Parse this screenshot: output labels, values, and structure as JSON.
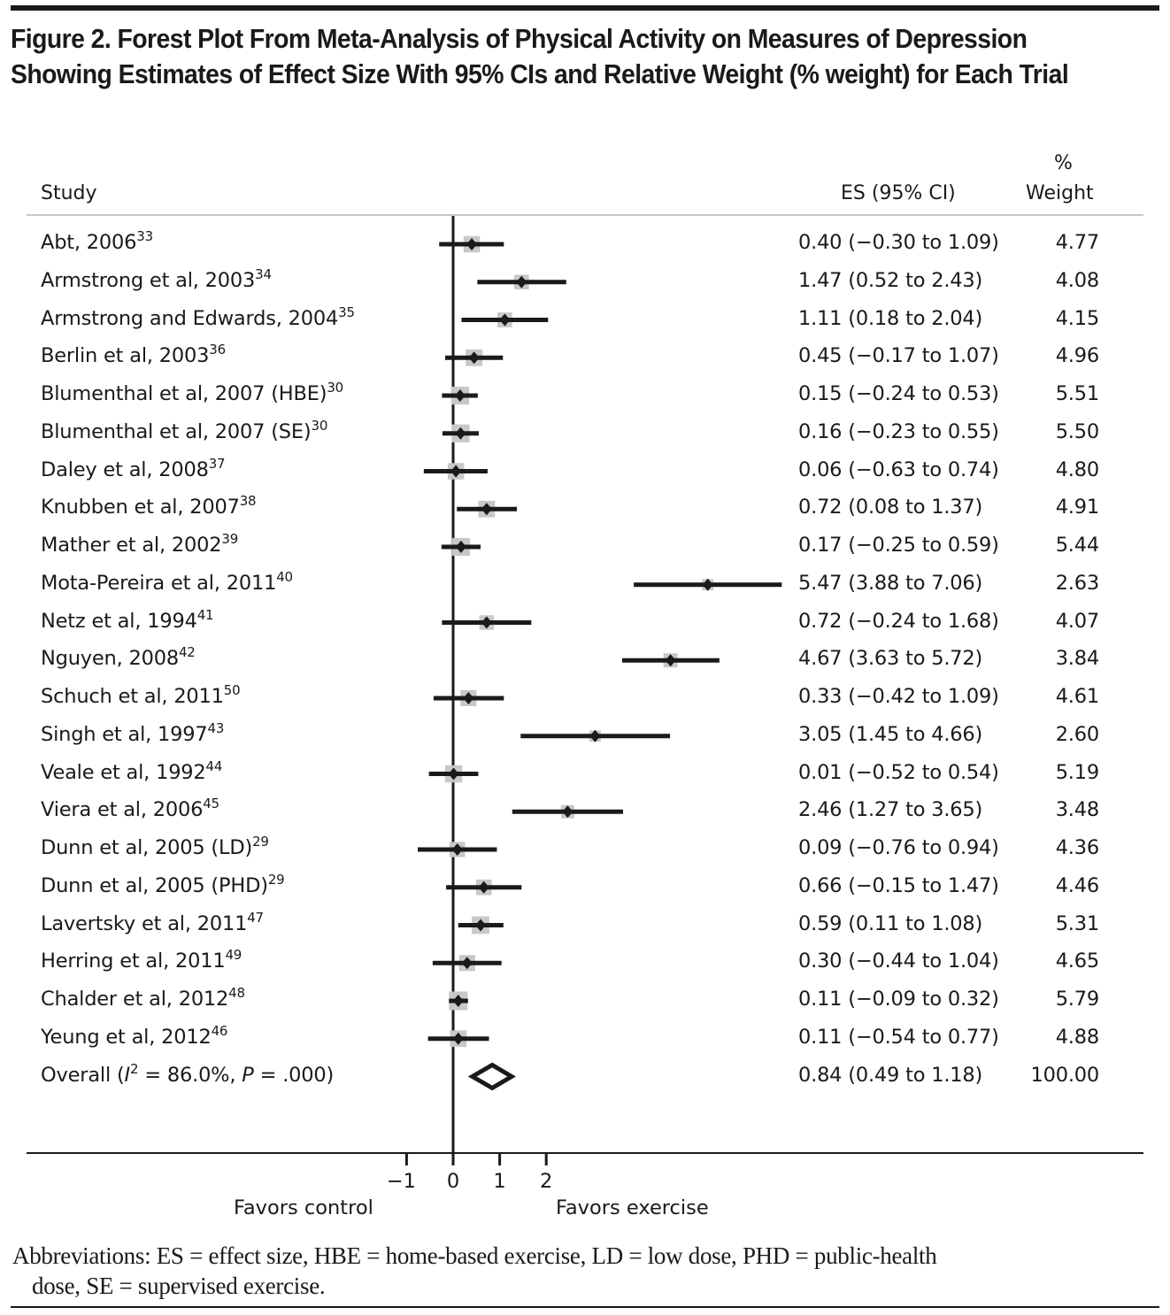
{
  "title": "Figure 2. Forest Plot From Meta-Analysis of Physical Activity on Measures of Depression Showing Estimates of Effect Size With 95% CIs and Relative Weight (% weight) for Each Trial",
  "headers": {
    "study": "Study",
    "es": "ES (95% CI)",
    "weight_top": "%",
    "weight_bottom": "Weight"
  },
  "abbreviations_line1": "Abbreviations: ES = effect size, HBE = home-based exercise, LD = low dose, PHD = public-health",
  "abbreviations_line2": "dose, SE = supervised exercise.",
  "colors": {
    "ink": "#1a1a1a",
    "weight_box": "#c8c8c8",
    "rule": "#c8c8c8"
  },
  "chart_data": {
    "type": "forest",
    "title": "Figure 2. Forest Plot From Meta-Analysis of Physical Activity on Measures of Depression Showing Estimates of Effect Size With 95% CIs and Relative Weight (% weight) for Each Trial",
    "xlabel_left": "Favors control",
    "xlabel_right": "Favors exercise",
    "x_ticks": [
      "−1",
      "0",
      "1",
      "2"
    ],
    "x_tick_values": [
      -1,
      0,
      1,
      2
    ],
    "null_line": 0,
    "studies": [
      {
        "name": "Abt, 2006",
        "ref": "33",
        "es": 0.4,
        "lo": -0.3,
        "hi": 1.09,
        "es_text": "0.40 (−0.30 to 1.09)",
        "weight": "4.77"
      },
      {
        "name": "Armstrong et al, 2003",
        "ref": "34",
        "es": 1.47,
        "lo": 0.52,
        "hi": 2.43,
        "es_text": "1.47 (0.52 to 2.43)",
        "weight": "4.08"
      },
      {
        "name": "Armstrong and Edwards, 2004",
        "ref": "35",
        "es": 1.11,
        "lo": 0.18,
        "hi": 2.04,
        "es_text": "1.11 (0.18 to 2.04)",
        "weight": "4.15"
      },
      {
        "name": "Berlin et al, 2003",
        "ref": "36",
        "es": 0.45,
        "lo": -0.17,
        "hi": 1.07,
        "es_text": "0.45 (−0.17 to 1.07)",
        "weight": "4.96"
      },
      {
        "name": "Blumenthal et al, 2007 (HBE)",
        "ref": "30",
        "es": 0.15,
        "lo": -0.24,
        "hi": 0.53,
        "es_text": "0.15 (−0.24 to 0.53)",
        "weight": "5.51"
      },
      {
        "name": "Blumenthal et al, 2007 (SE)",
        "ref": "30",
        "es": 0.16,
        "lo": -0.23,
        "hi": 0.55,
        "es_text": "0.16 (−0.23 to 0.55)",
        "weight": "5.50"
      },
      {
        "name": "Daley et al, 2008",
        "ref": "37",
        "es": 0.06,
        "lo": -0.63,
        "hi": 0.74,
        "es_text": "0.06 (−0.63 to 0.74)",
        "weight": "4.80"
      },
      {
        "name": "Knubben et al, 2007",
        "ref": "38",
        "es": 0.72,
        "lo": 0.08,
        "hi": 1.37,
        "es_text": "0.72 (0.08 to 1.37)",
        "weight": "4.91"
      },
      {
        "name": "Mather et al, 2002",
        "ref": "39",
        "es": 0.17,
        "lo": -0.25,
        "hi": 0.59,
        "es_text": "0.17 (−0.25 to 0.59)",
        "weight": "5.44"
      },
      {
        "name": "Mota-Pereira et al, 2011",
        "ref": "40",
        "es": 5.47,
        "lo": 3.88,
        "hi": 7.06,
        "es_text": "5.47 (3.88 to 7.06)",
        "weight": "2.63"
      },
      {
        "name": "Netz et al, 1994",
        "ref": "41",
        "es": 0.72,
        "lo": -0.24,
        "hi": 1.68,
        "es_text": "0.72 (−0.24 to 1.68)",
        "weight": "4.07"
      },
      {
        "name": "Nguyen, 2008",
        "ref": "42",
        "es": 4.67,
        "lo": 3.63,
        "hi": 5.72,
        "es_text": "4.67 (3.63 to 5.72)",
        "weight": "3.84"
      },
      {
        "name": "Schuch et al, 2011",
        "ref": "50",
        "es": 0.33,
        "lo": -0.42,
        "hi": 1.09,
        "es_text": "0.33 (−0.42 to 1.09)",
        "weight": "4.61"
      },
      {
        "name": "Singh et al, 1997",
        "ref": "43",
        "es": 3.05,
        "lo": 1.45,
        "hi": 4.66,
        "es_text": "3.05 (1.45 to 4.66)",
        "weight": "2.60"
      },
      {
        "name": "Veale et al, 1992",
        "ref": "44",
        "es": 0.01,
        "lo": -0.52,
        "hi": 0.54,
        "es_text": "0.01 (−0.52 to 0.54)",
        "weight": "5.19"
      },
      {
        "name": "Viera et al, 2006",
        "ref": "45",
        "es": 2.46,
        "lo": 1.27,
        "hi": 3.65,
        "es_text": "2.46 (1.27 to 3.65)",
        "weight": "3.48"
      },
      {
        "name": "Dunn et al, 2005 (LD)",
        "ref": "29",
        "es": 0.09,
        "lo": -0.76,
        "hi": 0.94,
        "es_text": "0.09 (−0.76 to 0.94)",
        "weight": "4.36"
      },
      {
        "name": "Dunn et al, 2005 (PHD)",
        "ref": "29",
        "es": 0.66,
        "lo": -0.15,
        "hi": 1.47,
        "es_text": "0.66 (−0.15 to 1.47)",
        "weight": "4.46"
      },
      {
        "name": "Lavertsky et al, 2011",
        "ref": "47",
        "es": 0.59,
        "lo": 0.11,
        "hi": 1.08,
        "es_text": "0.59 (0.11 to 1.08)",
        "weight": "5.31"
      },
      {
        "name": "Herring et al, 2011",
        "ref": "49",
        "es": 0.3,
        "lo": -0.44,
        "hi": 1.04,
        "es_text": "0.30 (−0.44 to 1.04)",
        "weight": "4.65"
      },
      {
        "name": "Chalder et al, 2012",
        "ref": "48",
        "es": 0.11,
        "lo": -0.09,
        "hi": 0.32,
        "es_text": "0.11 (−0.09 to 0.32)",
        "weight": "5.79"
      },
      {
        "name": "Yeung et al, 2012",
        "ref": "46",
        "es": 0.11,
        "lo": -0.54,
        "hi": 0.77,
        "es_text": "0.11 (−0.54 to 0.77)",
        "weight": "4.88"
      }
    ],
    "overall": {
      "label_prefix": "Overall (",
      "label_i": "I",
      "label_sup": "2",
      "label_mid": " = 86.0%, ",
      "label_p": "P",
      "label_suffix": " = .000)",
      "es": 0.84,
      "lo": 0.49,
      "hi": 1.18,
      "es_text": "0.84 (0.49 to 1.18)",
      "weight": "100.00"
    }
  }
}
